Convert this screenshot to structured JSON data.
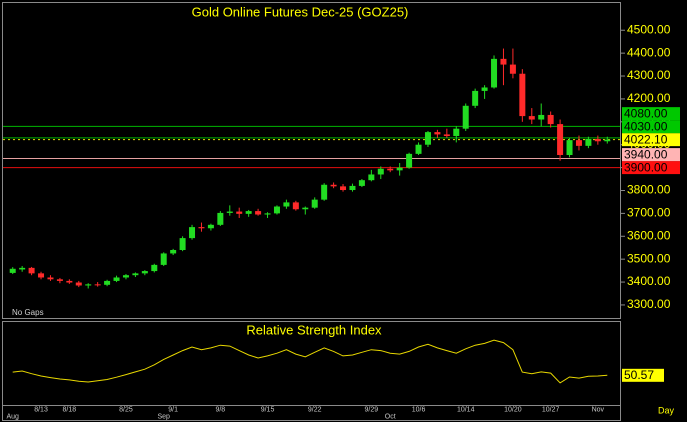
{
  "chart_data": [
    {
      "type": "candlestick",
      "title": "Gold Online Futures Dec-25 (GOZ25)",
      "note": "No Gaps",
      "period": "Day",
      "categories": [
        null,
        null,
        null,
        "8/13",
        null,
        null,
        "8/18",
        null,
        null,
        null,
        null,
        null,
        "8/25",
        null,
        null,
        null,
        null,
        "9/1",
        null,
        null,
        null,
        null,
        "9/8",
        null,
        null,
        null,
        null,
        "9/15",
        null,
        null,
        null,
        null,
        "9/22",
        null,
        null,
        null,
        null,
        null,
        "9/29",
        null,
        null,
        null,
        null,
        "10/6",
        null,
        null,
        null,
        null,
        "10/14",
        null,
        null,
        null,
        null,
        "10/20",
        null,
        null,
        null,
        "10/27",
        null,
        null,
        null,
        null,
        "Nov",
        null
      ],
      "months": [
        "Aug",
        null,
        null,
        null,
        null,
        null,
        null,
        null,
        null,
        null,
        null,
        null,
        null,
        null,
        null,
        null,
        "Sep",
        null,
        null,
        null,
        null,
        null,
        null,
        null,
        null,
        null,
        null,
        null,
        null,
        null,
        null,
        null,
        null,
        null,
        null,
        null,
        null,
        null,
        null,
        null,
        "Oct",
        null,
        null,
        null,
        null,
        null,
        null,
        null,
        null,
        null,
        null,
        null,
        null,
        null,
        null,
        null,
        null,
        null,
        null,
        null,
        null,
        null,
        null,
        null
      ],
      "open": [
        3440,
        3455,
        3462,
        3438,
        3420,
        3412,
        3405,
        3398,
        3385,
        3390,
        3388,
        3405,
        3420,
        3430,
        3438,
        3448,
        3475,
        3525,
        3540,
        3592,
        3640,
        3635,
        3650,
        3702,
        3708,
        3698,
        3710,
        3695,
        3700,
        3730,
        3748,
        3718,
        3725,
        3760,
        3825,
        3818,
        3802,
        3820,
        3845,
        3870,
        3895,
        3888,
        3900,
        3960,
        4000,
        4055,
        4045,
        4038,
        4070,
        4170,
        4235,
        4250,
        4375,
        4350,
        4310,
        4125,
        4110,
        4130,
        4090,
        3955,
        4020,
        3995,
        4025,
        4015
      ],
      "high": [
        3465,
        3470,
        3466,
        3445,
        3430,
        3418,
        3412,
        3405,
        3395,
        3400,
        3410,
        3428,
        3435,
        3442,
        3452,
        3480,
        3530,
        3545,
        3600,
        3650,
        3660,
        3655,
        3710,
        3735,
        3725,
        3715,
        3720,
        3705,
        3735,
        3760,
        3755,
        3730,
        3770,
        3832,
        3835,
        3828,
        3830,
        3850,
        3890,
        3905,
        3905,
        3920,
        3965,
        4010,
        4060,
        4065,
        4070,
        4080,
        4180,
        4245,
        4260,
        4390,
        4420,
        4420,
        4330,
        4160,
        4180,
        4145,
        4110,
        4030,
        4040,
        4035,
        4040,
        4035
      ],
      "low": [
        3435,
        3445,
        3430,
        3412,
        3405,
        3395,
        3392,
        3378,
        3372,
        3380,
        3382,
        3400,
        3412,
        3422,
        3430,
        3442,
        3470,
        3518,
        3535,
        3585,
        3620,
        3625,
        3645,
        3690,
        3680,
        3685,
        3690,
        3680,
        3695,
        3720,
        3712,
        3695,
        3720,
        3755,
        3810,
        3795,
        3795,
        3815,
        3840,
        3850,
        3880,
        3865,
        3895,
        3955,
        3990,
        4030,
        4030,
        4010,
        4060,
        4160,
        4200,
        4245,
        4260,
        4290,
        4100,
        4090,
        4080,
        4075,
        3930,
        3945,
        3975,
        3985,
        4000,
        4005
      ],
      "close": [
        3458,
        3462,
        3438,
        3420,
        3412,
        3405,
        3398,
        3385,
        3390,
        3388,
        3405,
        3420,
        3430,
        3438,
        3448,
        3475,
        3525,
        3540,
        3592,
        3640,
        3635,
        3650,
        3702,
        3708,
        3698,
        3710,
        3695,
        3700,
        3730,
        3748,
        3718,
        3725,
        3760,
        3825,
        3818,
        3802,
        3820,
        3845,
        3870,
        3895,
        3888,
        3900,
        3960,
        4000,
        4055,
        4045,
        4038,
        4070,
        4170,
        4235,
        4250,
        4375,
        4350,
        4310,
        4125,
        4110,
        4130,
        4090,
        3955,
        4020,
        3995,
        4025,
        4015,
        4022.1
      ],
      "up_color": "#22dd22",
      "down_color": "#ff2a2a",
      "ylim": [
        3243,
        4619
      ],
      "yticks": [
        {
          "value": 3300,
          "label": "3300.00"
        },
        {
          "value": 3400,
          "label": "3400.00"
        },
        {
          "value": 3500,
          "label": "3500.00"
        },
        {
          "value": 3600,
          "label": "3600.00"
        },
        {
          "value": 3700,
          "label": "3700.00"
        },
        {
          "value": 3800,
          "label": "3800.00"
        },
        {
          "value": 3900,
          "label": "3900.00"
        },
        {
          "value": 4000,
          "label": "4000.00"
        },
        {
          "value": 4100,
          "label": "4100.00"
        },
        {
          "value": 4200,
          "label": "4200.00"
        },
        {
          "value": 4300,
          "label": "4300.00"
        },
        {
          "value": 4400,
          "label": "4400.00"
        },
        {
          "value": 4500,
          "label": "4500.00"
        }
      ],
      "levels": [
        {
          "value": 4080,
          "label": "4080.00",
          "color": "#00c800"
        },
        {
          "value": 4030,
          "label": "4030.00",
          "color": "#00c800"
        },
        {
          "value": 4022.1,
          "label": "4022.10",
          "color": "#ffff00"
        },
        {
          "value": 3940,
          "label": "3940.00",
          "color": "#ffb4b4"
        },
        {
          "value": 3900,
          "label": "3900.00",
          "color": "#ff1010"
        }
      ]
    },
    {
      "type": "line",
      "title": "Relative Strength Index",
      "color": "#e8d800",
      "ylim": [
        35,
        80
      ],
      "values": [
        52.4,
        53.0,
        51.5,
        50.2,
        49.3,
        48.5,
        48.0,
        47.2,
        46.8,
        47.5,
        48.2,
        49.5,
        51.0,
        52.5,
        54.0,
        56.5,
        59.5,
        62.0,
        64.5,
        66.5,
        65.0,
        66.0,
        67.5,
        67.0,
        64.5,
        62.0,
        60.3,
        61.5,
        63.0,
        65.0,
        62.5,
        61.0,
        63.5,
        66.0,
        64.0,
        61.5,
        62.0,
        63.5,
        65.0,
        64.5,
        63.0,
        62.5,
        64.0,
        66.5,
        68.0,
        66.0,
        64.5,
        63.0,
        65.5,
        67.5,
        68.5,
        70.4,
        69.0,
        65.0,
        52.4,
        51.5,
        52.5,
        51.8,
        46.3,
        49.6,
        49.0,
        50.0,
        50.2,
        50.57
      ]
    }
  ]
}
